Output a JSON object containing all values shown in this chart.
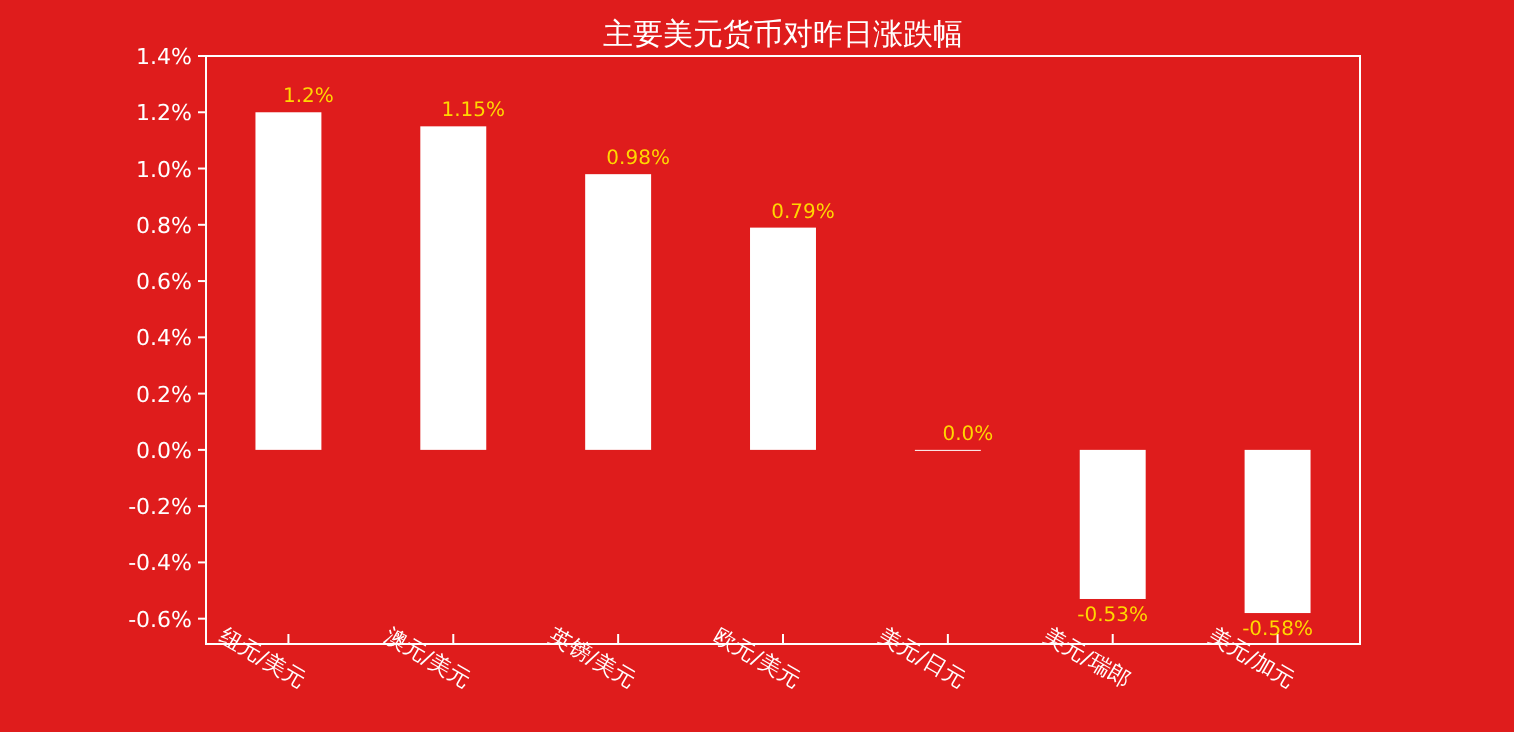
{
  "chart_data": {
    "type": "bar",
    "title": "主要美元货币对昨日涨跌幅",
    "categories": [
      "纽元/美元",
      "澳元/美元",
      "英镑/美元",
      "欧元/美元",
      "美元/日元",
      "美元/瑞郎",
      "美元/加元"
    ],
    "values": [
      1.2,
      1.15,
      0.98,
      0.79,
      0.0,
      -0.53,
      -0.58
    ],
    "value_labels": [
      "1.2%",
      "1.15%",
      "0.98%",
      "0.79%",
      "0.0%",
      "-0.53%",
      "-0.58%"
    ],
    "color": "#ffffff",
    "ylim": [
      -0.69,
      1.4
    ],
    "yticks": [
      {
        "value": -0.6,
        "label": "-0.6%"
      },
      {
        "value": -0.4,
        "label": "-0.4%"
      },
      {
        "value": -0.2,
        "label": "-0.2%"
      },
      {
        "value": 0,
        "label": "0.0%"
      },
      {
        "value": 0.2,
        "label": "0.2%"
      },
      {
        "value": 0.4,
        "label": "0.4%"
      },
      {
        "value": 0.6,
        "label": "0.6%"
      },
      {
        "value": 0.8,
        "label": "0.8%"
      },
      {
        "value": 1.0,
        "label": "1.0%"
      },
      {
        "value": 1.2,
        "label": "1.2%"
      },
      {
        "value": 1.4,
        "label": "1.4%"
      }
    ],
    "grid": false
  }
}
